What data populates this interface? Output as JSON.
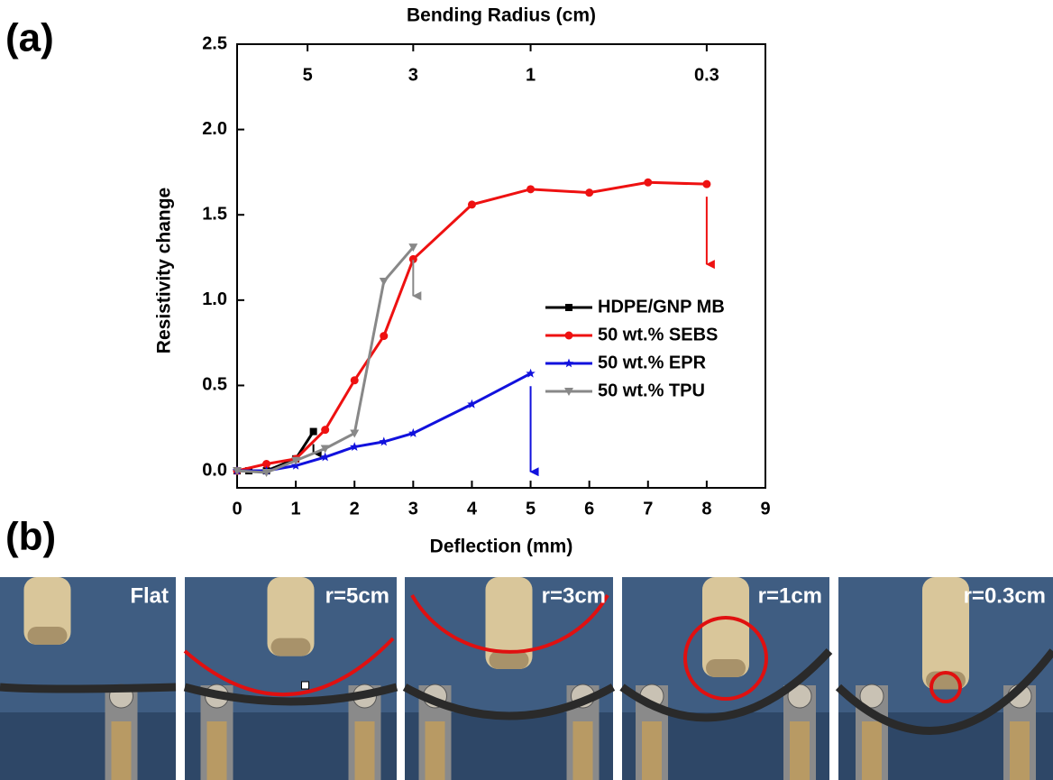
{
  "chart_data": {
    "type": "line",
    "title": "Bending Radius (cm)",
    "x_label": "Deflection (mm)",
    "y_label": "Resistivity change",
    "xlim": [
      0,
      9
    ],
    "ylim": [
      -0.1,
      2.5
    ],
    "xticks": [
      0,
      1,
      2,
      3,
      4,
      5,
      6,
      7,
      8,
      9
    ],
    "yticks": [
      {
        "value": 0,
        "label": "0.0"
      },
      {
        "value": 0.5,
        "label": "0.5"
      },
      {
        "value": 1,
        "label": "1.0"
      },
      {
        "value": 1.5,
        "label": "1.5"
      },
      {
        "value": 2,
        "label": "2.0"
      },
      {
        "value": 2.5,
        "label": "2.5"
      }
    ],
    "x2ticks": [
      {
        "value": 1.2,
        "label": "5"
      },
      {
        "value": 3,
        "label": "3"
      },
      {
        "value": 5,
        "label": "1"
      },
      {
        "value": 8,
        "label": "0.3"
      }
    ],
    "legend": "right",
    "series": [
      {
        "name": "HDPE/GNP MB",
        "color": "#000000",
        "marker": "square",
        "x": [
          0,
          0.2,
          0.5,
          1,
          1.3
        ],
        "values": [
          0,
          0.0,
          0.0,
          0.07,
          0.23
        ]
      },
      {
        "name": "50 wt.% SEBS",
        "color": "#ee1111",
        "marker": "circle",
        "x": [
          0,
          0.5,
          1,
          1.5,
          2,
          2.5,
          3,
          4,
          5,
          6,
          7,
          8
        ],
        "values": [
          0,
          0.04,
          0.07,
          0.24,
          0.53,
          0.79,
          1.24,
          1.56,
          1.65,
          1.63,
          1.69,
          1.68
        ]
      },
      {
        "name": "50 wt.% EPR",
        "color": "#1111dd",
        "marker": "star",
        "x": [
          0,
          0.5,
          1,
          1.5,
          2,
          2.5,
          3,
          4,
          5
        ],
        "values": [
          0,
          0.0,
          0.03,
          0.08,
          0.14,
          0.17,
          0.22,
          0.39,
          0.57
        ]
      },
      {
        "name": "50 wt.% TPU",
        "color": "#888888",
        "marker": "triangle-down",
        "x": [
          0,
          0.5,
          1,
          1.5,
          2,
          2.5,
          3
        ],
        "values": [
          0,
          -0.01,
          0.06,
          0.13,
          0.22,
          1.11,
          1.31
        ]
      }
    ]
  },
  "panel_labels": [
    "(a)",
    "(b)"
  ],
  "photos": [
    {
      "label": "Flat"
    },
    {
      "label": "r=5cm"
    },
    {
      "label": "r=3cm"
    },
    {
      "label": "r=1cm"
    },
    {
      "label": "r=0.3cm"
    }
  ]
}
